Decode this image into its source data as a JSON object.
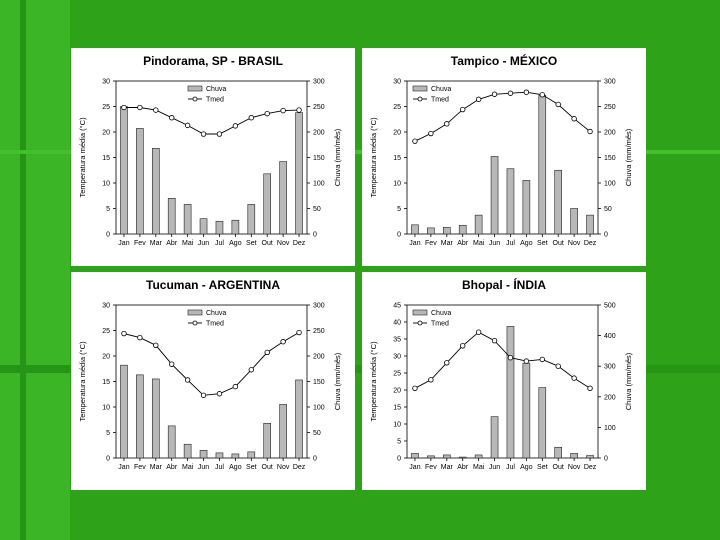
{
  "colors": {
    "background": "#2ea31a",
    "panel": "#ffffff",
    "bar_fill": "#b8b8b8"
  },
  "chart_data": [
    {
      "type": "bar+line",
      "title": "Pindorama, SP - BRASIL",
      "categories": [
        "Jan",
        "Fev",
        "Mar",
        "Abr",
        "Mai",
        "Jun",
        "Jul",
        "Ago",
        "Set",
        "Out",
        "Nov",
        "Dez"
      ],
      "ylabel_left": "Temperatura média (°C)",
      "ylabel_right": "Chuva (mm/mês)",
      "ylim_left": [
        0,
        30
      ],
      "ylim_right": [
        0,
        300
      ],
      "yticks_left": [
        0,
        5,
        10,
        15,
        20,
        25,
        30
      ],
      "yticks_right": [
        0,
        50,
        100,
        150,
        200,
        250,
        300
      ],
      "legend": [
        "Chuva",
        "Tmed"
      ],
      "legend_position": "top-center",
      "series": [
        {
          "name": "Chuva",
          "axis": "right",
          "style": "bar",
          "values": [
            250,
            207,
            168,
            70,
            58,
            30,
            25,
            27,
            58,
            118,
            142,
            238
          ]
        },
        {
          "name": "Tmed",
          "axis": "left",
          "style": "line",
          "values": [
            24.8,
            24.8,
            24.3,
            22.8,
            21.3,
            19.6,
            19.6,
            21.2,
            22.8,
            23.6,
            24.2,
            24.3
          ]
        }
      ]
    },
    {
      "type": "bar+line",
      "title": "Tampico - MÉXICO",
      "categories": [
        "Jan",
        "Fev",
        "Mar",
        "Abr",
        "Mai",
        "Jun",
        "Jul",
        "Ago",
        "Set",
        "Out",
        "Nov",
        "Dez"
      ],
      "ylabel_left": "Temperatura média (°C)",
      "ylabel_right": "Chuva (mm/mês)",
      "ylim_left": [
        0,
        30
      ],
      "ylim_right": [
        0,
        300
      ],
      "yticks_left": [
        0,
        5,
        10,
        15,
        20,
        25,
        30
      ],
      "yticks_right": [
        0,
        50,
        100,
        150,
        200,
        250,
        300
      ],
      "legend": [
        "Chuva",
        "Tmed"
      ],
      "legend_position": "top-left",
      "series": [
        {
          "name": "Chuva",
          "axis": "right",
          "style": "bar",
          "values": [
            18,
            12,
            13,
            17,
            37,
            152,
            128,
            105,
            272,
            125,
            50,
            37
          ]
        },
        {
          "name": "Tmed",
          "axis": "left",
          "style": "line",
          "values": [
            18.2,
            19.7,
            21.6,
            24.4,
            26.4,
            27.4,
            27.6,
            27.8,
            27.3,
            25.4,
            22.6,
            20.1
          ]
        }
      ]
    },
    {
      "type": "bar+line",
      "title": "Tucuman - ARGENTINA",
      "categories": [
        "Jan",
        "Fev",
        "Mar",
        "Abr",
        "Mai",
        "Jun",
        "Jul",
        "Ago",
        "Set",
        "Out",
        "Nov",
        "Dez"
      ],
      "ylabel_left": "Temperatura média (°C)",
      "ylabel_right": "Chuva (mm/mês)",
      "ylim_left": [
        0,
        30
      ],
      "ylim_right": [
        0,
        300
      ],
      "yticks_left": [
        0,
        5,
        10,
        15,
        20,
        25,
        30
      ],
      "yticks_right": [
        0,
        50,
        100,
        150,
        200,
        250,
        300
      ],
      "legend": [
        "Chuva",
        "Tmed"
      ],
      "legend_position": "top-center",
      "series": [
        {
          "name": "Chuva",
          "axis": "right",
          "style": "bar",
          "values": [
            182,
            163,
            155,
            63,
            27,
            15,
            10,
            8,
            12,
            68,
            105,
            153
          ]
        },
        {
          "name": "Tmed",
          "axis": "left",
          "style": "line",
          "values": [
            24.4,
            23.6,
            22.1,
            18.4,
            15.3,
            12.3,
            12.6,
            14,
            17.3,
            20.7,
            22.8,
            24.6
          ]
        }
      ]
    },
    {
      "type": "bar+line",
      "title": "Bhopal - ÍNDIA",
      "categories": [
        "Jan",
        "Fev",
        "Mar",
        "Abr",
        "Mai",
        "Jun",
        "Jul",
        "Ago",
        "Set",
        "Out",
        "Nov",
        "Dez"
      ],
      "ylabel_left": "Temperatura média (°C)",
      "ylabel_right": "Chuva (mm/mês)",
      "ylim_left": [
        0,
        45
      ],
      "ylim_right": [
        0,
        500
      ],
      "yticks_left": [
        0,
        5,
        10,
        15,
        20,
        25,
        30,
        35,
        40,
        45
      ],
      "yticks_right": [
        0,
        100,
        200,
        300,
        400,
        500
      ],
      "legend": [
        "Chuva",
        "Tmed"
      ],
      "legend_position": "top-left",
      "series": [
        {
          "name": "Chuva",
          "axis": "right",
          "style": "bar",
          "values": [
            15,
            7,
            10,
            3,
            10,
            135,
            430,
            310,
            230,
            35,
            15,
            8
          ]
        },
        {
          "name": "Tmed",
          "axis": "left",
          "style": "line",
          "values": [
            20.5,
            23,
            28,
            33,
            37,
            34.5,
            29.5,
            28.5,
            29,
            27,
            23.5,
            20.5
          ]
        }
      ]
    }
  ]
}
